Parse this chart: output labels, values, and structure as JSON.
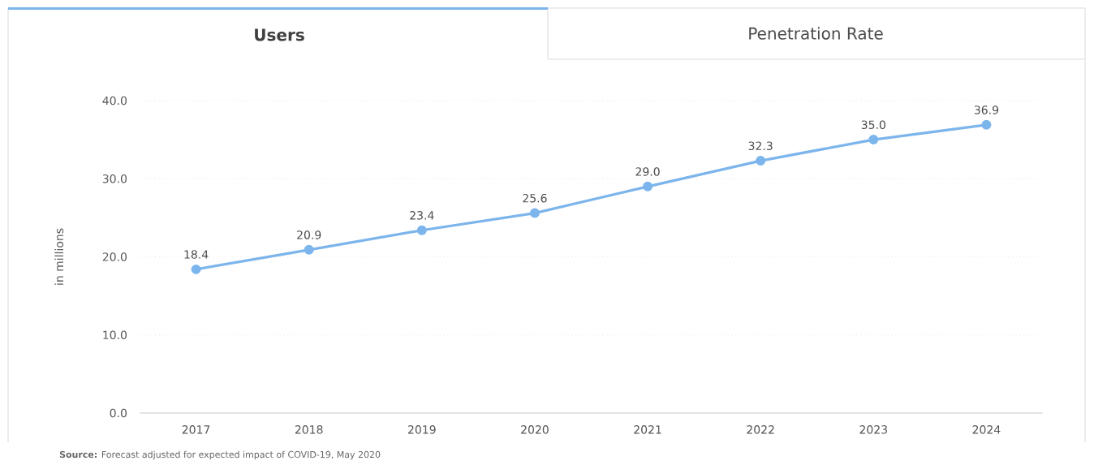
{
  "chart_data": {
    "type": "line",
    "title": "Users",
    "ylabel": "in millions",
    "annotations": [
      "Penetration Rate",
      "**Source:** Forecast adjusted for expected impact of COVID-19, May 2020"
    ],
    "categories": [
      "2017",
      "2018",
      "2019",
      "2020",
      "2021",
      "2022",
      "2023",
      "2024"
    ],
    "series": [
      {
        "color": "#7cb5ec",
        "values": [
          18.4,
          20.9,
          23.4,
          25.6,
          29.0,
          32.3,
          35.0,
          36.9
        ],
        "value_labels": [
          "18.4",
          "20.9",
          "23.4",
          "25.6",
          "29.0",
          "32.3",
          "35.0",
          "36.9"
        ]
      }
    ],
    "ylim": [
      0,
      40
    ],
    "yticks": [
      {
        "value": 0,
        "label": "0.0"
      },
      {
        "value": 10,
        "label": "10.0"
      },
      {
        "value": 20,
        "label": "20.0"
      },
      {
        "value": 30,
        "label": "30.0"
      },
      {
        "value": 40,
        "label": "40.0"
      }
    ],
    "grid": "y",
    "marker": "circle",
    "line_style": "solid"
  }
}
